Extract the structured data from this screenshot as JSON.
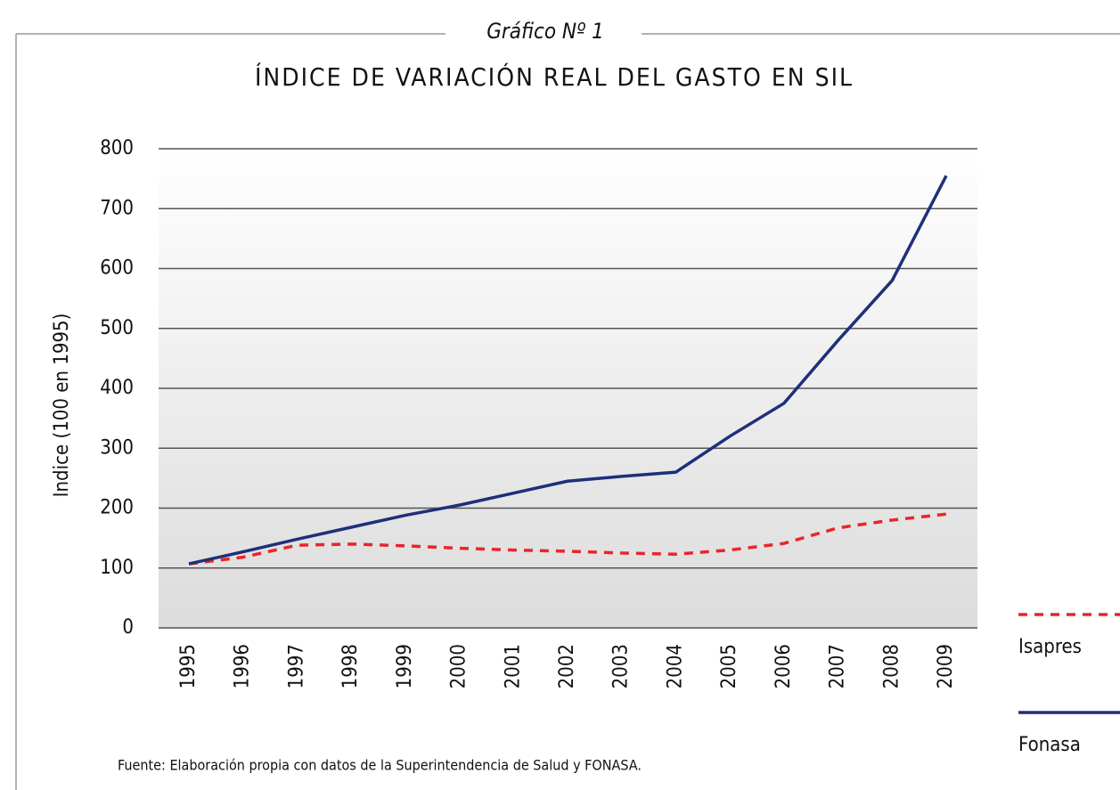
{
  "chart_data": {
    "type": "line",
    "subtitle": "Gráfico Nº 1",
    "title": "ÍNDICE DE VARIACIÓN REAL DEL GASTO EN SIL",
    "y_label": "Indice (100 en 1995)",
    "source": "Fuente: Elaboración propia con datos de la Superintendencia de Salud y FONASA.",
    "categories": [
      "1995",
      "1996",
      "1997",
      "1998",
      "1999",
      "2000",
      "2001",
      "2002",
      "2003",
      "2004",
      "2005",
      "2006",
      "2007",
      "2008",
      "2009"
    ],
    "series": [
      {
        "name": "Isapres",
        "color": "#e8262b",
        "dash": true,
        "values": [
          107,
          118,
          138,
          140,
          137,
          133,
          130,
          128,
          125,
          123,
          130,
          141,
          167,
          180,
          190
        ]
      },
      {
        "name": "Fonasa",
        "color": "#1f2f7a",
        "dash": false,
        "values": [
          107,
          127,
          148,
          168,
          188,
          205,
          225,
          245,
          253,
          260,
          320,
          375,
          480,
          580,
          755
        ]
      }
    ],
    "ylim": [
      0,
      800
    ],
    "yticks": [
      0,
      100,
      200,
      300,
      400,
      500,
      600,
      700,
      800
    ],
    "grid": true
  }
}
